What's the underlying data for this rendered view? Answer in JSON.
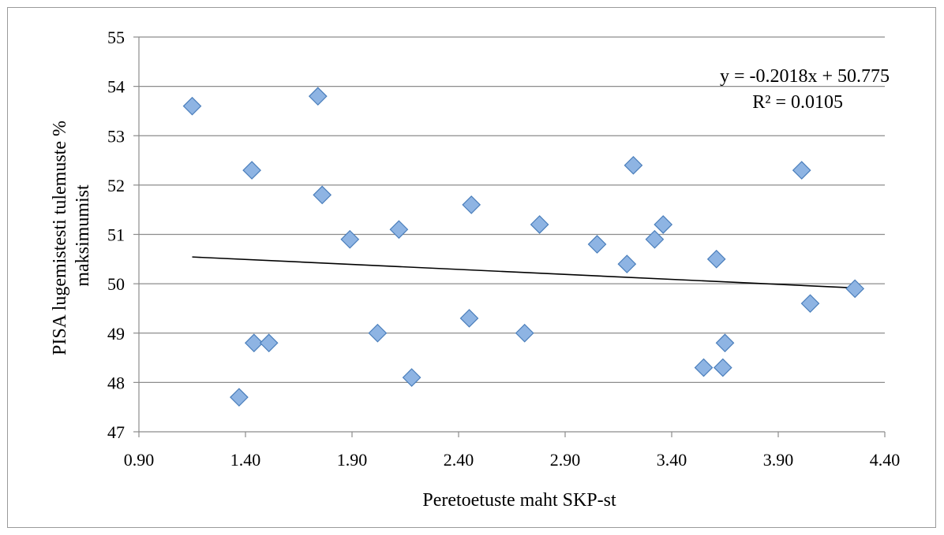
{
  "chart_data": {
    "type": "scatter",
    "xlabel": "Peretoetuste maht SKP-st",
    "ylabel_lines": [
      "PISA lugemistesti tulemuste %",
      "maksimumist"
    ],
    "xlim": [
      0.9,
      4.4
    ],
    "ylim": [
      47,
      55
    ],
    "x_ticks": [
      "0.90",
      "1.40",
      "1.90",
      "2.40",
      "2.90",
      "3.40",
      "3.90",
      "4.40"
    ],
    "y_ticks": [
      "47",
      "48",
      "49",
      "50",
      "51",
      "52",
      "53",
      "54",
      "55"
    ],
    "grid": "horizontal",
    "marker": "diamond",
    "marker_color": "#8EB4E3",
    "marker_stroke": "#4A7EBB",
    "points": [
      {
        "x": 1.15,
        "y": 53.6
      },
      {
        "x": 1.37,
        "y": 47.7
      },
      {
        "x": 1.43,
        "y": 52.3
      },
      {
        "x": 1.44,
        "y": 48.8
      },
      {
        "x": 1.51,
        "y": 48.8
      },
      {
        "x": 1.74,
        "y": 53.8
      },
      {
        "x": 1.76,
        "y": 51.8
      },
      {
        "x": 1.89,
        "y": 50.9
      },
      {
        "x": 2.02,
        "y": 49.0
      },
      {
        "x": 2.12,
        "y": 51.1
      },
      {
        "x": 2.18,
        "y": 48.1
      },
      {
        "x": 2.45,
        "y": 49.3
      },
      {
        "x": 2.46,
        "y": 51.6
      },
      {
        "x": 2.71,
        "y": 49.0
      },
      {
        "x": 2.78,
        "y": 51.2
      },
      {
        "x": 3.05,
        "y": 50.8
      },
      {
        "x": 3.19,
        "y": 50.4
      },
      {
        "x": 3.22,
        "y": 52.4
      },
      {
        "x": 3.32,
        "y": 50.9
      },
      {
        "x": 3.36,
        "y": 51.2
      },
      {
        "x": 3.55,
        "y": 48.3
      },
      {
        "x": 3.61,
        "y": 50.5
      },
      {
        "x": 3.64,
        "y": 48.3
      },
      {
        "x": 3.65,
        "y": 48.8
      },
      {
        "x": 4.01,
        "y": 52.3
      },
      {
        "x": 4.05,
        "y": 49.6
      },
      {
        "x": 4.26,
        "y": 49.9
      }
    ],
    "trendline": {
      "slope": -0.2018,
      "intercept": 50.775,
      "x_range": [
        1.15,
        4.26
      ],
      "equation_label": "y = -0.2018x + 50.775",
      "r2_label": "R² = 0.0105",
      "color": "#000000"
    }
  }
}
